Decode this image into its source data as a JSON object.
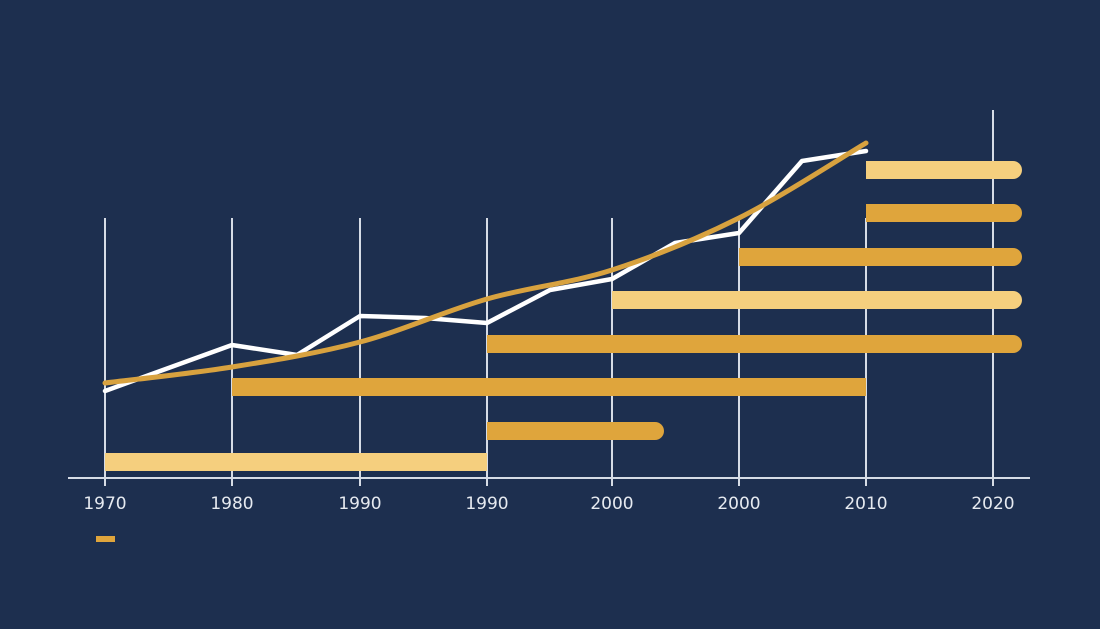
{
  "colors": {
    "background": "#1D2F4F",
    "grid": "#D6DCE6",
    "line_primary": "#FFFFFF",
    "line_trend": "#D8A23F",
    "bar_light": "#F5CF7E",
    "bar_dark": "#DFA53C"
  },
  "legend": {
    "items": [
      {
        "label": "",
        "color": "#DFA53C"
      }
    ]
  },
  "chart_data": {
    "type": "bar",
    "subtype": "timeline-gantt-with-lines",
    "title": "",
    "xlabel": "",
    "ylabel": "",
    "x_tick_labels": [
      "1970",
      "1980",
      "1990",
      "1990",
      "2000",
      "2000",
      "2010",
      "2020"
    ],
    "grid": {
      "vertical": true,
      "horizontal": false
    },
    "legend_position": "bottom-left",
    "bars": [
      {
        "row": 1,
        "start_tick": 6,
        "end": "2020+",
        "start_label": "2010",
        "color": "light"
      },
      {
        "row": 2,
        "start_tick": 6,
        "end": "2020+",
        "start_label": "2010",
        "color": "dark"
      },
      {
        "row": 3,
        "start_tick": 5,
        "end": "2020+",
        "start_label": "2000",
        "color": "dark"
      },
      {
        "row": 4,
        "start_tick": 4,
        "end": "2020+",
        "start_label": "2000",
        "color": "light"
      },
      {
        "row": 5,
        "start_tick": 3,
        "end": "2020+",
        "start_label": "1990",
        "color": "dark"
      },
      {
        "row": 6,
        "start_tick": 1,
        "end_tick": 6,
        "start_label": "1980",
        "end_label": "2010",
        "color": "dark"
      },
      {
        "row": 7,
        "start_tick": 3,
        "end": "~2004",
        "start_label": "1990",
        "color": "dark"
      },
      {
        "row": 8,
        "start_tick": 0,
        "end_tick": 3,
        "start_label": "1970",
        "end_label": "1990",
        "color": "light"
      }
    ],
    "series": [
      {
        "name": "white-line",
        "type": "line",
        "x_tick_positions": [
          0,
          1,
          1.5,
          2,
          2.5,
          3,
          3.5,
          4,
          4.5,
          5,
          5.5,
          6
        ],
        "values": [
          10,
          17,
          16,
          22,
          22,
          21,
          26,
          28,
          34,
          35,
          47,
          48
        ]
      },
      {
        "name": "gold-trend",
        "type": "line",
        "x_tick_positions": [
          0,
          1,
          2,
          3,
          4,
          5,
          6
        ],
        "values": [
          11,
          14,
          18,
          25,
          30,
          38,
          50
        ]
      }
    ]
  }
}
